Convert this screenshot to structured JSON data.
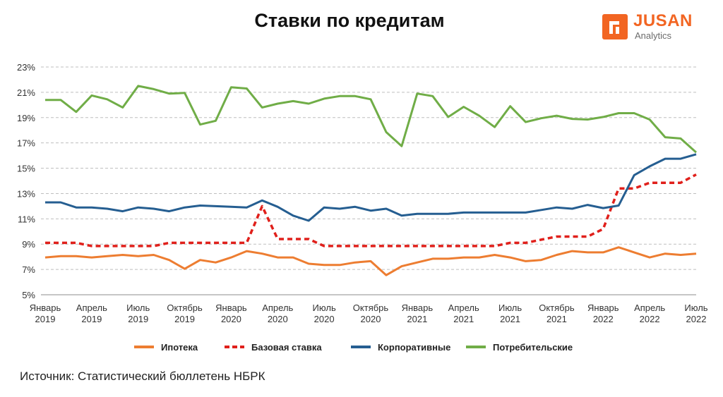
{
  "header": {
    "title": "Ставки по кредитам",
    "logo_name": "JUSAN",
    "logo_sub": "Analytics"
  },
  "footer": {
    "source": "Источник: Статистический бюллетень НБРК"
  },
  "colors": {
    "mortgage": "#ED7D31",
    "base_rate": "#E0201B",
    "corporate": "#255E91",
    "consumer": "#70AD47",
    "grid": "#BFBFBF",
    "brand": "#F26522"
  },
  "chart_data": {
    "type": "line",
    "title": "Ставки по кредитам",
    "ylim": [
      5,
      23
    ],
    "yticks": [
      "5%",
      "7%",
      "9%",
      "11%",
      "13%",
      "15%",
      "17%",
      "19%",
      "21%",
      "23%"
    ],
    "grid": true,
    "legend_position": "bottom",
    "x": [
      "2019-01",
      "2019-02",
      "2019-03",
      "2019-04",
      "2019-05",
      "2019-06",
      "2019-07",
      "2019-08",
      "2019-09",
      "2019-10",
      "2019-11",
      "2019-12",
      "2020-01",
      "2020-02",
      "2020-03",
      "2020-04",
      "2020-05",
      "2020-06",
      "2020-07",
      "2020-08",
      "2020-09",
      "2020-10",
      "2020-11",
      "2020-12",
      "2021-01",
      "2021-02",
      "2021-03",
      "2021-04",
      "2021-05",
      "2021-06",
      "2021-07",
      "2021-08",
      "2021-09",
      "2021-10",
      "2021-11",
      "2021-12",
      "2022-01",
      "2022-02",
      "2022-03",
      "2022-04",
      "2022-05",
      "2022-06",
      "2022-07"
    ],
    "x_tick_labels": [
      [
        "Январь",
        "2019"
      ],
      [
        "Апрель",
        "2019"
      ],
      [
        "Июль",
        "2019"
      ],
      [
        "Октябрь",
        "2019"
      ],
      [
        "Январь",
        "2020"
      ],
      [
        "Апрель",
        "2020"
      ],
      [
        "Июль",
        "2020"
      ],
      [
        "Октябрь",
        "2020"
      ],
      [
        "Январь",
        "2021"
      ],
      [
        "Апрель",
        "2021"
      ],
      [
        "Июль",
        "2021"
      ],
      [
        "Октябрь",
        "2021"
      ],
      [
        "Январь",
        "2022"
      ],
      [
        "Апрель",
        "2022"
      ],
      [
        "Июль",
        "2022"
      ]
    ],
    "series": [
      {
        "name": "Ипотека",
        "key": "mortgage",
        "style": "solid",
        "values": [
          7.95,
          8.05,
          8.05,
          7.95,
          8.05,
          8.15,
          8.05,
          8.15,
          7.75,
          7.05,
          7.75,
          7.55,
          7.95,
          8.45,
          8.25,
          7.95,
          7.95,
          7.45,
          7.35,
          7.35,
          7.55,
          7.65,
          6.55,
          7.25,
          7.55,
          7.85,
          7.85,
          7.95,
          7.95,
          8.15,
          7.95,
          7.65,
          7.75,
          8.15,
          8.45,
          8.35,
          8.35,
          8.75,
          8.35,
          7.95,
          8.25,
          8.15,
          8.25
        ]
      },
      {
        "name": "Базовая ставка",
        "key": "base_rate",
        "style": "dashed",
        "values": [
          9.1,
          9.1,
          9.1,
          8.85,
          8.85,
          8.85,
          8.85,
          8.85,
          9.1,
          9.1,
          9.1,
          9.1,
          9.1,
          9.1,
          12.0,
          9.4,
          9.4,
          9.4,
          8.85,
          8.85,
          8.85,
          8.85,
          8.85,
          8.85,
          8.85,
          8.85,
          8.85,
          8.85,
          8.85,
          8.85,
          9.1,
          9.1,
          9.35,
          9.6,
          9.6,
          9.6,
          10.2,
          13.4,
          13.4,
          13.85,
          13.85,
          13.85,
          14.5
        ]
      },
      {
        "name": "Корпоративные",
        "key": "corporate",
        "style": "solid",
        "values": [
          12.3,
          12.3,
          11.9,
          11.9,
          11.8,
          11.6,
          11.9,
          11.8,
          11.6,
          11.9,
          12.05,
          12.0,
          11.95,
          11.9,
          12.45,
          11.95,
          11.25,
          10.85,
          11.9,
          11.8,
          11.95,
          11.65,
          11.8,
          11.25,
          11.4,
          11.4,
          11.4,
          11.5,
          11.5,
          11.5,
          11.5,
          11.5,
          11.7,
          11.9,
          11.8,
          12.1,
          11.85,
          12.05,
          14.45,
          15.15,
          15.75,
          15.75,
          16.1
        ]
      },
      {
        "name": "Потребительские",
        "key": "consumer",
        "style": "solid",
        "values": [
          20.4,
          20.4,
          19.45,
          20.75,
          20.45,
          19.8,
          21.5,
          21.25,
          20.9,
          20.95,
          18.45,
          18.75,
          21.4,
          21.3,
          19.8,
          20.1,
          20.3,
          20.1,
          20.5,
          20.7,
          20.7,
          20.45,
          17.85,
          16.75,
          20.9,
          20.7,
          19.05,
          19.85,
          19.15,
          18.25,
          19.9,
          18.65,
          18.95,
          19.15,
          18.9,
          18.85,
          19.05,
          19.35,
          19.35,
          18.85,
          17.45,
          17.35,
          16.25
        ]
      }
    ]
  }
}
